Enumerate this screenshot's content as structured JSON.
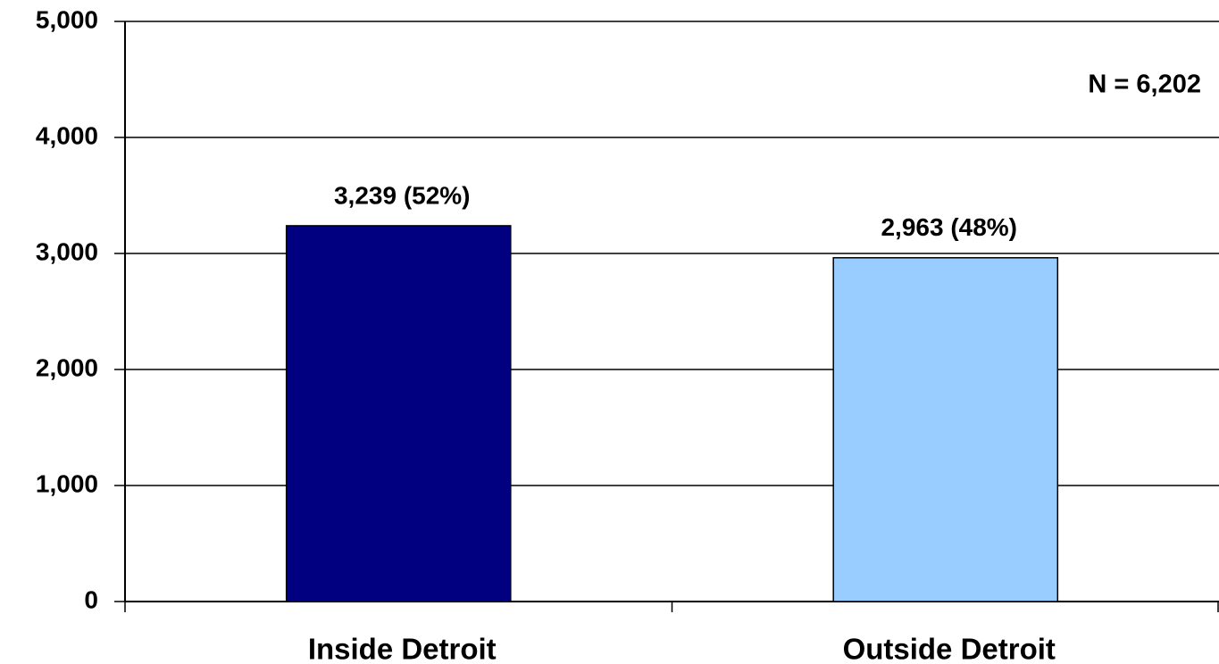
{
  "chart_data": {
    "type": "bar",
    "annotation": "N = 6,202",
    "categories": [
      "Inside Detroit",
      "Outside Detroit"
    ],
    "values": [
      3239,
      2963
    ],
    "value_labels": [
      "3,239 (52%)",
      "2,963 (48%)"
    ],
    "colors": [
      "#000080",
      "#99ccff"
    ],
    "ylim": [
      0,
      5000
    ],
    "yticks": [
      0,
      {
        "value": 1000,
        "label": "1,000"
      },
      {
        "value": 2000,
        "label": "2,000"
      },
      {
        "value": 3000,
        "label": "3,000"
      },
      {
        "value": 4000,
        "label": "4,000"
      },
      {
        "value": 5000,
        "label": "5,000"
      }
    ],
    "grid": true
  }
}
